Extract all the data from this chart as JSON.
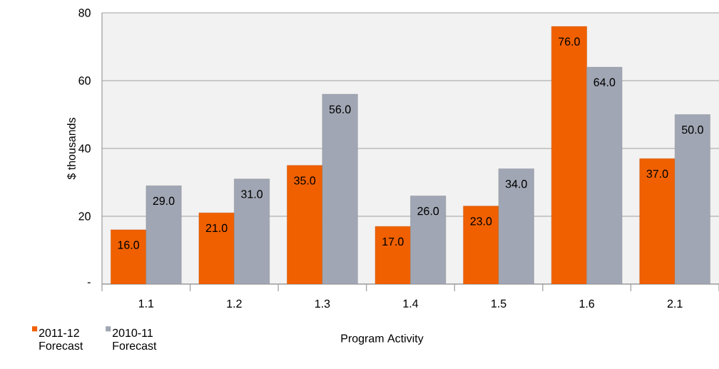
{
  "chart_data": {
    "type": "bar",
    "xlabel": "Program Activity",
    "ylabel": "$ thousands",
    "categories": [
      "1.1",
      "1.2",
      "1.3",
      "1.4",
      "1.5",
      "1.6",
      "2.1"
    ],
    "series": [
      {
        "name": "2011-12 Forecast",
        "color": "#f06000",
        "values": [
          16,
          21,
          35,
          17,
          23,
          76,
          37
        ],
        "value_labels": [
          "16.0",
          "21.0",
          "35.0",
          "17.0",
          "23.0",
          "76.0",
          "37.0"
        ]
      },
      {
        "name": "2010-11 Forecast",
        "color": "#a0a6b3",
        "values": [
          29,
          31,
          56,
          26,
          34,
          64,
          50
        ],
        "value_labels": [
          "29.0",
          "31.0",
          "56.0",
          "26.0",
          "34.0",
          "64.0",
          "50.0"
        ]
      }
    ],
    "ylim": [
      0,
      80
    ],
    "yticks": [
      {
        "value": 0,
        "label": "-"
      },
      20,
      40,
      60,
      80
    ],
    "grid": "y",
    "legend": "bottom left"
  }
}
